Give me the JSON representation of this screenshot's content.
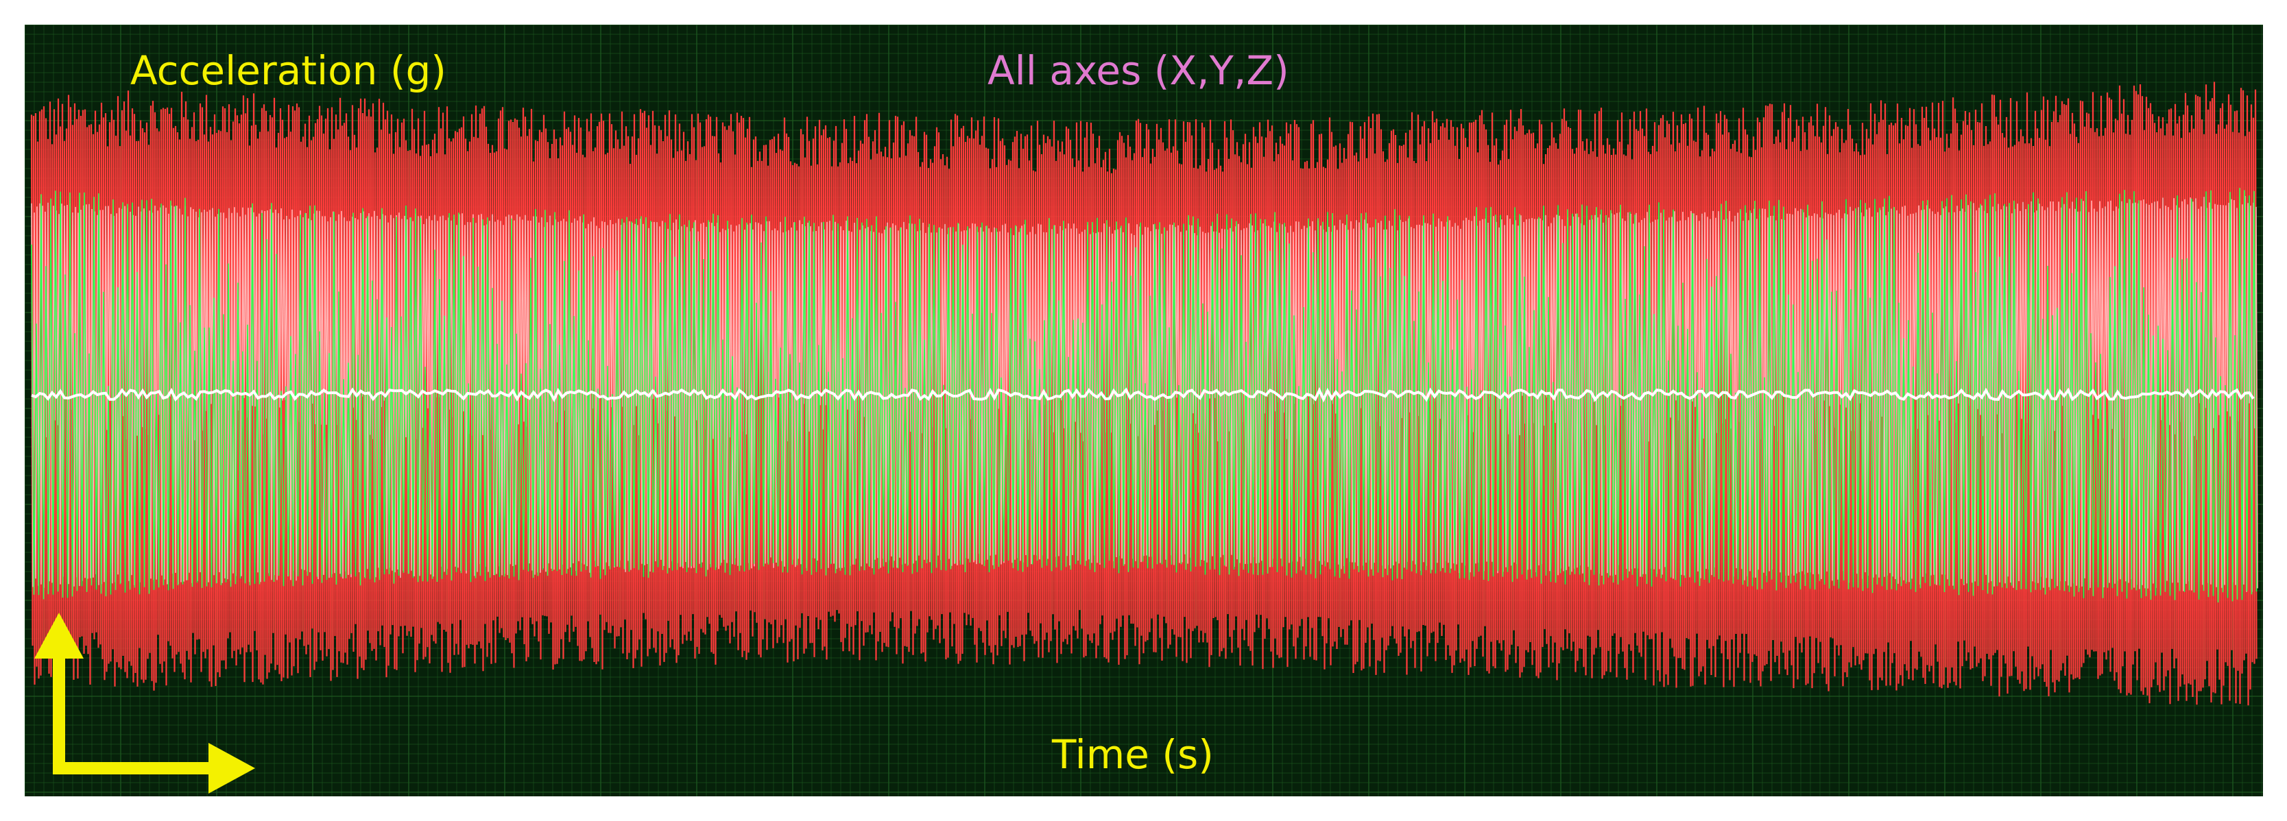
{
  "chart_data": {
    "type": "line",
    "title": "All axes (X,Y,Z)",
    "ylabel": "Acceleration (g)",
    "xlabel": "Time (s)",
    "grid": true,
    "legend": "none",
    "colors": {
      "background": "#06210a",
      "grid": "#1e5a20",
      "labels": "#f4f100",
      "title": "#e07ad0",
      "axis_arrows": "#f4f100"
    },
    "series": [
      {
        "color": "#ff3b3b",
        "envelope_upper": [
          0.83,
          0.85,
          0.84,
          0.82,
          0.8,
          0.79,
          0.78,
          0.78,
          0.77,
          0.76,
          0.76,
          0.77,
          0.78,
          0.79,
          0.8,
          0.81,
          0.82,
          0.84,
          0.87,
          0.88
        ],
        "envelope_lower": [
          -0.8,
          -0.82,
          -0.8,
          -0.78,
          -0.76,
          -0.75,
          -0.74,
          -0.74,
          -0.74,
          -0.74,
          -0.75,
          -0.76,
          -0.78,
          -0.8,
          -0.81,
          -0.82,
          -0.83,
          -0.84,
          -0.86,
          -0.87
        ]
      },
      {
        "color": "#ffb4b4",
        "envelope_upper": [
          0.58,
          0.57,
          0.56,
          0.55,
          0.54,
          0.53,
          0.52,
          0.52,
          0.51,
          0.51,
          0.51,
          0.52,
          0.53,
          0.54,
          0.55,
          0.56,
          0.57,
          0.58,
          0.59,
          0.6
        ],
        "envelope_lower": [
          -0.58,
          -0.57,
          -0.56,
          -0.55,
          -0.54,
          -0.53,
          -0.52,
          -0.52,
          -0.51,
          -0.51,
          -0.51,
          -0.52,
          -0.53,
          -0.54,
          -0.55,
          -0.56,
          -0.57,
          -0.58,
          -0.59,
          -0.6
        ]
      },
      {
        "color": "#2bff4e",
        "envelope_upper": [
          0.62,
          0.6,
          0.58,
          0.57,
          0.56,
          0.55,
          0.54,
          0.54,
          0.53,
          0.53,
          0.54,
          0.55,
          0.56,
          0.57,
          0.58,
          0.59,
          0.6,
          0.61,
          0.62,
          0.63
        ],
        "envelope_lower": [
          -0.62,
          -0.6,
          -0.58,
          -0.57,
          -0.56,
          -0.55,
          -0.54,
          -0.54,
          -0.53,
          -0.53,
          -0.54,
          -0.55,
          -0.56,
          -0.57,
          -0.58,
          -0.59,
          -0.6,
          -0.61,
          -0.62,
          -0.63
        ]
      }
    ]
  }
}
